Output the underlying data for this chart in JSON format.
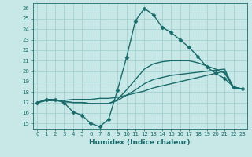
{
  "xlabel": "Humidex (Indice chaleur)",
  "background_color": "#c8e8e8",
  "grid_color": "#9ecece",
  "line_color": "#1a6b6b",
  "xlim": [
    -0.5,
    23.5
  ],
  "ylim": [
    14.5,
    26.5
  ],
  "xticks": [
    0,
    1,
    2,
    3,
    4,
    5,
    6,
    7,
    8,
    9,
    10,
    11,
    12,
    13,
    14,
    15,
    16,
    17,
    18,
    19,
    20,
    21,
    22,
    23
  ],
  "yticks": [
    15,
    16,
    17,
    18,
    19,
    20,
    21,
    22,
    23,
    24,
    25,
    26
  ],
  "series": [
    {
      "x": [
        0,
        1,
        2,
        3,
        4,
        5,
        6,
        7,
        8,
        9,
        10,
        11,
        12,
        13,
        14,
        15,
        16,
        17,
        18,
        19,
        20,
        21,
        22,
        23
      ],
      "y": [
        17.0,
        17.3,
        17.3,
        17.0,
        16.1,
        15.8,
        15.0,
        14.7,
        15.4,
        18.2,
        21.3,
        24.8,
        26.0,
        25.4,
        24.2,
        23.7,
        23.0,
        22.3,
        21.4,
        20.4,
        19.8,
        19.3,
        18.5,
        18.3
      ],
      "marker": "D",
      "markersize": 2.5,
      "linewidth": 1.0
    },
    {
      "x": [
        0,
        1,
        2,
        3,
        4,
        5,
        6,
        7,
        8,
        9,
        10,
        11,
        12,
        13,
        14,
        15,
        16,
        17,
        18,
        19,
        20,
        21,
        22,
        23
      ],
      "y": [
        17.0,
        17.2,
        17.2,
        17.2,
        17.3,
        17.3,
        17.3,
        17.4,
        17.4,
        17.5,
        17.7,
        17.9,
        18.1,
        18.4,
        18.6,
        18.8,
        19.0,
        19.2,
        19.4,
        19.6,
        19.8,
        20.0,
        18.3,
        18.3
      ],
      "marker": null,
      "linewidth": 1.0
    },
    {
      "x": [
        0,
        1,
        2,
        3,
        4,
        5,
        6,
        7,
        8,
        9,
        10,
        11,
        12,
        13,
        14,
        15,
        16,
        17,
        18,
        19,
        20,
        21,
        22,
        23
      ],
      "y": [
        17.0,
        17.2,
        17.2,
        17.1,
        17.0,
        17.0,
        16.9,
        16.9,
        16.9,
        17.3,
        18.2,
        19.2,
        20.2,
        20.7,
        20.9,
        21.0,
        21.0,
        21.0,
        20.8,
        20.5,
        20.2,
        19.8,
        18.5,
        18.3
      ],
      "marker": null,
      "linewidth": 1.0
    },
    {
      "x": [
        0,
        1,
        2,
        3,
        4,
        5,
        6,
        7,
        8,
        9,
        10,
        11,
        12,
        13,
        14,
        15,
        16,
        17,
        18,
        19,
        20,
        21,
        22,
        23
      ],
      "y": [
        17.0,
        17.2,
        17.2,
        17.1,
        17.0,
        17.0,
        16.9,
        16.9,
        16.9,
        17.2,
        17.7,
        18.2,
        18.8,
        19.2,
        19.4,
        19.6,
        19.7,
        19.8,
        19.9,
        20.0,
        20.1,
        20.2,
        18.4,
        18.3
      ],
      "marker": null,
      "linewidth": 1.0
    }
  ]
}
